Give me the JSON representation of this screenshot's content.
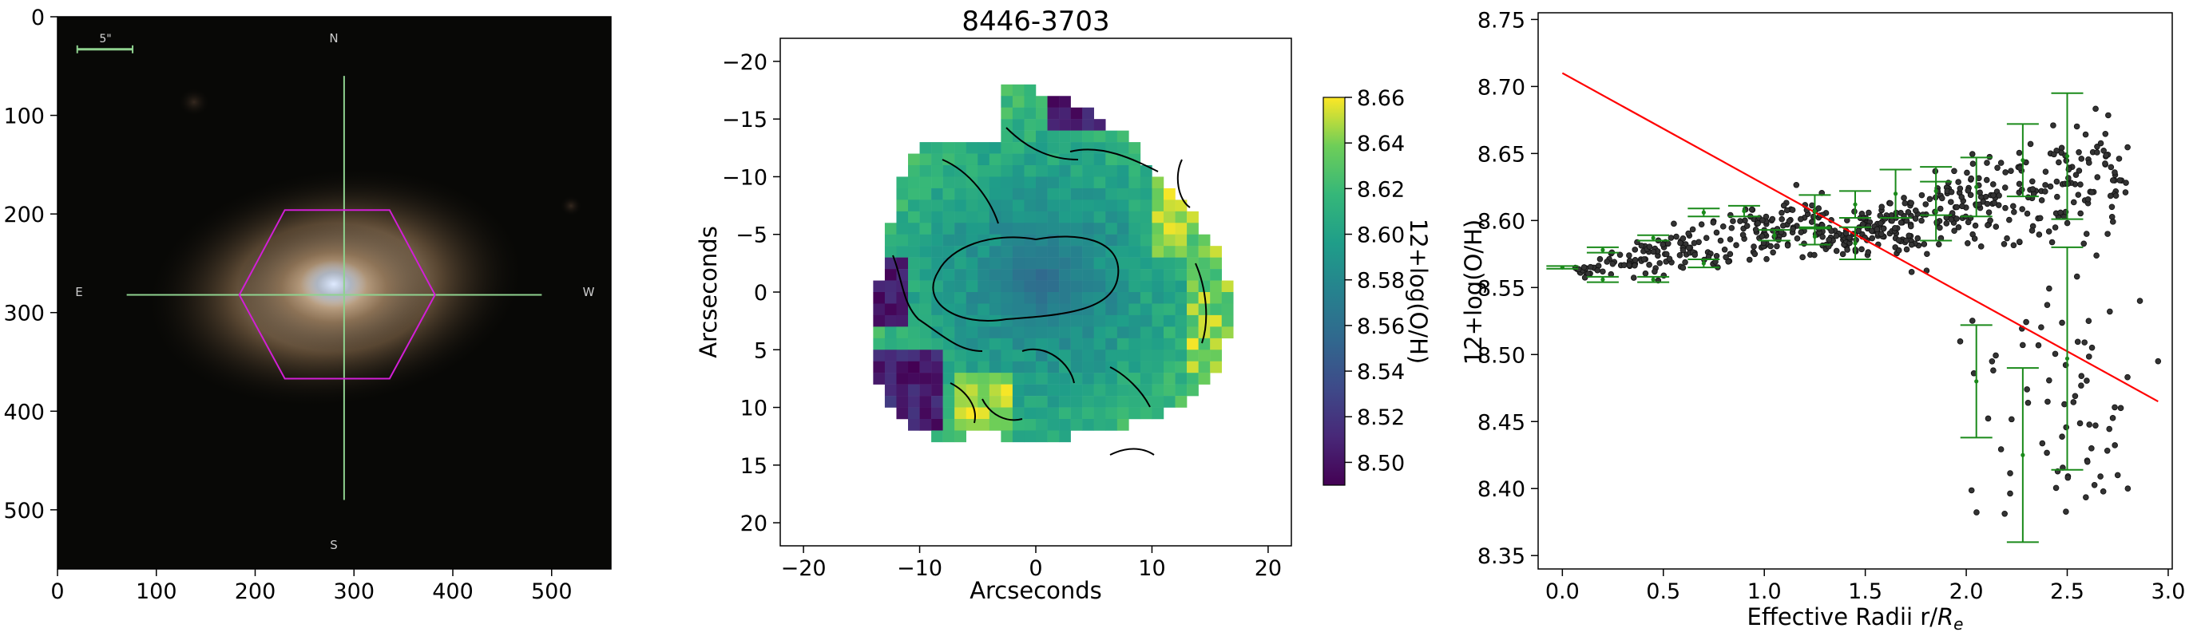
{
  "panels": {
    "image": {
      "xticks": [
        0,
        100,
        200,
        300,
        400,
        500
      ],
      "yticks": [
        0,
        100,
        200,
        300,
        400,
        500
      ],
      "xlim": [
        0,
        560
      ],
      "ylim": [
        560,
        0
      ],
      "compass": {
        "n": "N",
        "s": "S",
        "e": "E",
        "w": "W"
      },
      "scale_label": "5\"",
      "colors": {
        "hexagon": "#d21fd6",
        "crosshair": "#8fd28f",
        "scalebar": "#8fd28f",
        "background": "#080806"
      }
    },
    "map": {
      "title": "8446-3703",
      "xlabel": "Arcseconds",
      "ylabel": "Arcseconds",
      "xticks": [
        "−20",
        "−10",
        "0",
        "10",
        "20"
      ],
      "yticks": [
        "−20",
        "−15",
        "−10",
        "−5",
        "0",
        "5",
        "10",
        "15",
        "20"
      ],
      "colorbar": {
        "label": "12+log(O/H)",
        "ticks": [
          "8.66",
          "8.64",
          "8.62",
          "8.60",
          "8.58",
          "8.56",
          "8.54",
          "8.52",
          "8.50"
        ],
        "range": [
          8.49,
          8.66
        ],
        "colormap": "viridis"
      }
    },
    "gradient": {
      "xlabel_main": "Effective Radii r/",
      "xlabel_sym": "R",
      "xlabel_sub": "e",
      "ylabel": "12+log(O/H)",
      "xticks": [
        "0.0",
        "0.5",
        "1.0",
        "1.5",
        "2.0",
        "2.5",
        "3.0"
      ],
      "yticks": [
        "8.35",
        "8.40",
        "8.45",
        "8.50",
        "8.55",
        "8.60",
        "8.65",
        "8.70",
        "8.75"
      ],
      "colors": {
        "fit": "#ff0000",
        "errorbars": "#1a8a1a",
        "points": "#333333"
      }
    }
  },
  "chart_data": [
    {
      "type": "image",
      "xlim": [
        0,
        560
      ],
      "ylim": [
        560,
        0
      ],
      "hexagon_center": [
        290,
        282
      ],
      "hexagon_vertices": [
        [
          230,
          196
        ],
        [
          336,
          196
        ],
        [
          382,
          282
        ],
        [
          336,
          367
        ],
        [
          230,
          367
        ],
        [
          184,
          282
        ]
      ],
      "crosshair": {
        "horizontal": [
          70,
          490
        ],
        "vertical": [
          60,
          490
        ]
      }
    },
    {
      "type": "heatmap",
      "title": "8446-3703",
      "xlabel": "Arcseconds",
      "ylabel": "Arcseconds",
      "xlim": [
        -22,
        22
      ],
      "ylim": [
        22,
        -22
      ],
      "colorbar_range": [
        8.49,
        8.66
      ],
      "colorbar_label": "12+log(O/H)"
    },
    {
      "type": "scatter",
      "xlabel": "Effective Radii r/R_e",
      "ylabel": "12+log(O/H)",
      "xlim": [
        -0.12,
        3.02
      ],
      "ylim": [
        8.34,
        8.755
      ],
      "fit_line": {
        "x": [
          0.0,
          2.95
        ],
        "y": [
          8.71,
          8.465
        ]
      },
      "binned": [
        {
          "x": 0.0,
          "y": 8.565,
          "err": 0.001
        },
        {
          "x": 0.2,
          "y": 8.578,
          "err": 0.002
        },
        {
          "x": 0.2,
          "y": 8.556,
          "err": 0.002
        },
        {
          "x": 0.45,
          "y": 8.587,
          "err": 0.002
        },
        {
          "x": 0.45,
          "y": 8.556,
          "err": 0.002
        },
        {
          "x": 0.7,
          "y": 8.606,
          "err": 0.003
        },
        {
          "x": 0.7,
          "y": 8.568,
          "err": 0.003
        },
        {
          "x": 0.9,
          "y": 8.607,
          "err": 0.004
        },
        {
          "x": 1.05,
          "y": 8.589,
          "err": 0.004
        },
        {
          "x": 1.25,
          "y": 8.607,
          "err": 0.012
        },
        {
          "x": 1.25,
          "y": 8.588,
          "err": 0.006
        },
        {
          "x": 1.45,
          "y": 8.612,
          "err": 0.01
        },
        {
          "x": 1.45,
          "y": 8.583,
          "err": 0.012
        },
        {
          "x": 1.65,
          "y": 8.62,
          "err": 0.018
        },
        {
          "x": 1.85,
          "y": 8.622,
          "err": 0.018
        },
        {
          "x": 1.85,
          "y": 8.607,
          "err": 0.022
        },
        {
          "x": 2.05,
          "y": 8.625,
          "err": 0.022
        },
        {
          "x": 2.05,
          "y": 8.48,
          "err": 0.042
        },
        {
          "x": 2.28,
          "y": 8.645,
          "err": 0.027
        },
        {
          "x": 2.28,
          "y": 8.425,
          "err": 0.065
        },
        {
          "x": 2.5,
          "y": 8.648,
          "err": 0.047
        },
        {
          "x": 2.5,
          "y": 8.497,
          "err": 0.083
        }
      ]
    }
  ]
}
